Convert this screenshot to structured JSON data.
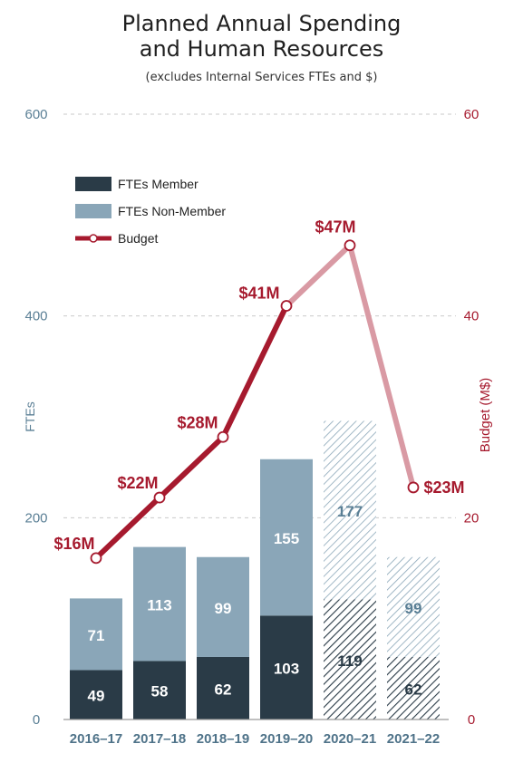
{
  "chart_data": {
    "type": "bar",
    "title_line1": "Planned Annual Spending",
    "title_line2": "and Human Resources",
    "subtitle": "(excludes Internal Services FTEs and $)",
    "categories": [
      "2016–17",
      "2017–18",
      "2018–19",
      "2019–20",
      "2020–21",
      "2021–22"
    ],
    "stacked": true,
    "series": [
      {
        "name": "FTEs Member",
        "values": [
          49,
          58,
          62,
          103,
          119,
          62
        ],
        "color": "#2a3b47"
      },
      {
        "name": "FTEs Non-Member",
        "values": [
          71,
          113,
          99,
          155,
          177,
          99
        ],
        "color": "#8aa6b8"
      }
    ],
    "hatched_categories": [
      "2020–21",
      "2021–22"
    ],
    "line_series": {
      "name": "Budget",
      "values": [
        16,
        22,
        28,
        41,
        47,
        23
      ],
      "labels": [
        "$16M",
        "$22M",
        "$28M",
        "$41M",
        "$47M",
        "$23M"
      ],
      "color": "#a61a2e",
      "faded_color": "#d99aa4",
      "faded_from_index": 4
    },
    "y_left": {
      "label": "FTEs",
      "min": 0,
      "max": 600,
      "ticks": [
        "0",
        "200",
        "400",
        "600"
      ],
      "color": "#5a7f95"
    },
    "y_right": {
      "label": "Budget (M$)",
      "min": 0,
      "max": 60,
      "ticks": [
        "0",
        "20",
        "40",
        "60"
      ],
      "color": "#a61a2e"
    },
    "grid": true,
    "legend_position": "top-left"
  }
}
